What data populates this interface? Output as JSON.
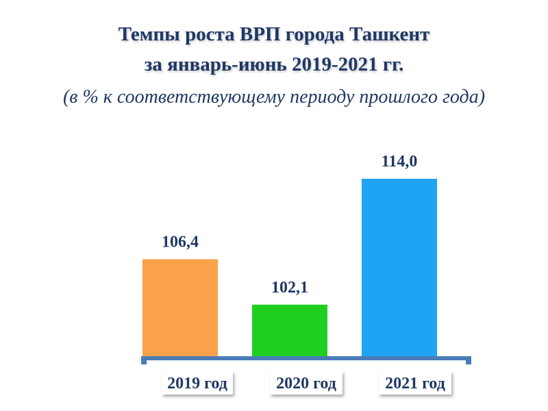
{
  "header": {
    "title_line1": "Темпы роста ВРП города Ташкент",
    "title_line2": "за январь-июнь 2019-2021 гг.",
    "subtitle": "(в % к соответствующему периоду прошлого года)"
  },
  "chart_data": {
    "type": "bar",
    "title": "Темпы роста ВРП города Ташкент за январь-июнь 2019-2021 гг.",
    "subtitle": "(в % к соответствующему периоду прошлого года)",
    "categories": [
      "2019 год",
      "2020 год",
      "2021 год"
    ],
    "values": [
      106.4,
      102.1,
      114.0
    ],
    "value_labels": [
      "106,4",
      "102,1",
      "114,0"
    ],
    "colors": [
      "#f9a24a",
      "#1fcf1f",
      "#1fa3f5"
    ],
    "axis_color": "#4a7cb8",
    "xlabel": "",
    "ylabel": "",
    "grid": false,
    "legend": "none"
  }
}
